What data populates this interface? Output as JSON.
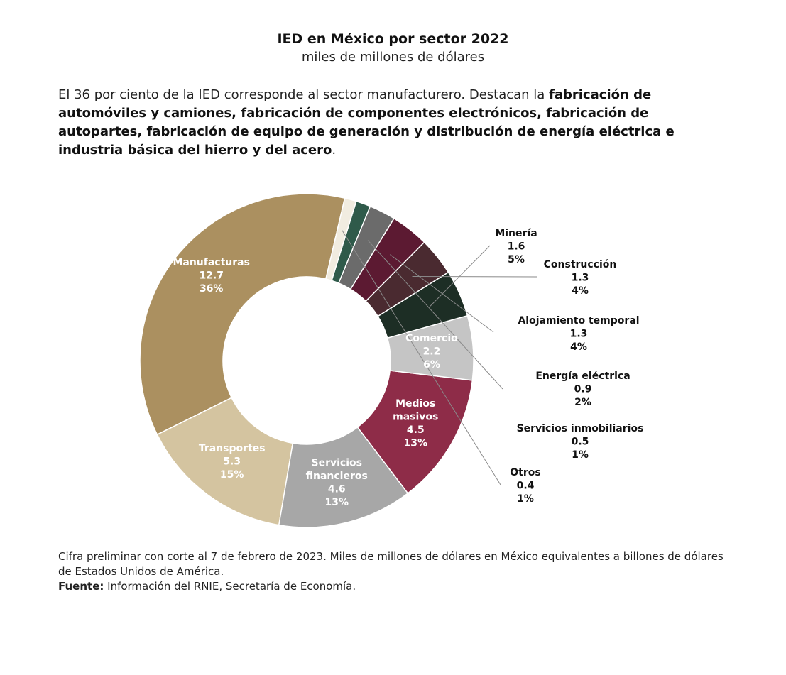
{
  "header": {
    "title": "IED en México por sector 2022",
    "subtitle": "miles de millones de dólares"
  },
  "description": {
    "intro": "El 36 por ciento de la IED corresponde al sector manufacturero. Destacan la ",
    "highlight": "fabricación de automóviles y camiones, fabricación de componentes electrónicos, fabricación de autopartes, fabricación de equipo de generación y distribución de energía eléctrica e industria básica del hierro y del acero",
    "end": "."
  },
  "footer": {
    "note": "Cifra preliminar con corte al 7 de febrero de 2023. Miles de millones de dólares en México equivalentes a billones de dólares de Estados Unidos de América.",
    "source_label": "Fuente:",
    "source_text": " Información del RNIE, Secretaría de Economía."
  },
  "chart_data": {
    "type": "pie",
    "donut": true,
    "title": "IED en México por sector 2022",
    "subtitle": "miles de millones de dólares",
    "slices": [
      {
        "name": "Manufacturas",
        "value": 12.7,
        "percent": "36%",
        "color": "#ab9060",
        "label_color": "#ffffff",
        "label_position": "inside"
      },
      {
        "name": "Transportes",
        "value": 5.3,
        "percent": "15%",
        "color": "#d4c4a0",
        "label_color": "#ffffff",
        "label_position": "inside"
      },
      {
        "name": "Servicios financieros",
        "value": 4.6,
        "percent": "13%",
        "color": "#a7a7a7",
        "label_color": "#ffffff",
        "label_position": "inside"
      },
      {
        "name": "Medios masivos",
        "value": 4.5,
        "percent": "13%",
        "color": "#8e2c48",
        "label_color": "#ffffff",
        "label_position": "inside"
      },
      {
        "name": "Comercio",
        "value": 2.2,
        "percent": "6%",
        "color": "#c5c5c5",
        "label_color": "#ffffff",
        "label_position": "inside"
      },
      {
        "name": "Minería",
        "value": 1.6,
        "percent": "5%",
        "color": "#1d2e25",
        "label_color": "#111111",
        "label_position": "outside"
      },
      {
        "name": "Construcción",
        "value": 1.3,
        "percent": "4%",
        "color": "#4a2a30",
        "label_color": "#111111",
        "label_position": "outside"
      },
      {
        "name": "Alojamiento temporal",
        "value": 1.3,
        "percent": "4%",
        "color": "#5c1a32",
        "label_color": "#111111",
        "label_position": "outside"
      },
      {
        "name": "Energía eléctrica",
        "value": 0.9,
        "percent": "2%",
        "color": "#6b6b6b",
        "label_color": "#111111",
        "label_position": "outside"
      },
      {
        "name": "Servicios inmobiliarios",
        "value": 0.5,
        "percent": "1%",
        "color": "#2f5a4a",
        "label_color": "#111111",
        "label_position": "outside"
      },
      {
        "name": "Otros",
        "value": 0.4,
        "percent": "1%",
        "color": "#f1ece0",
        "label_color": "#111111",
        "label_position": "outside"
      }
    ]
  }
}
